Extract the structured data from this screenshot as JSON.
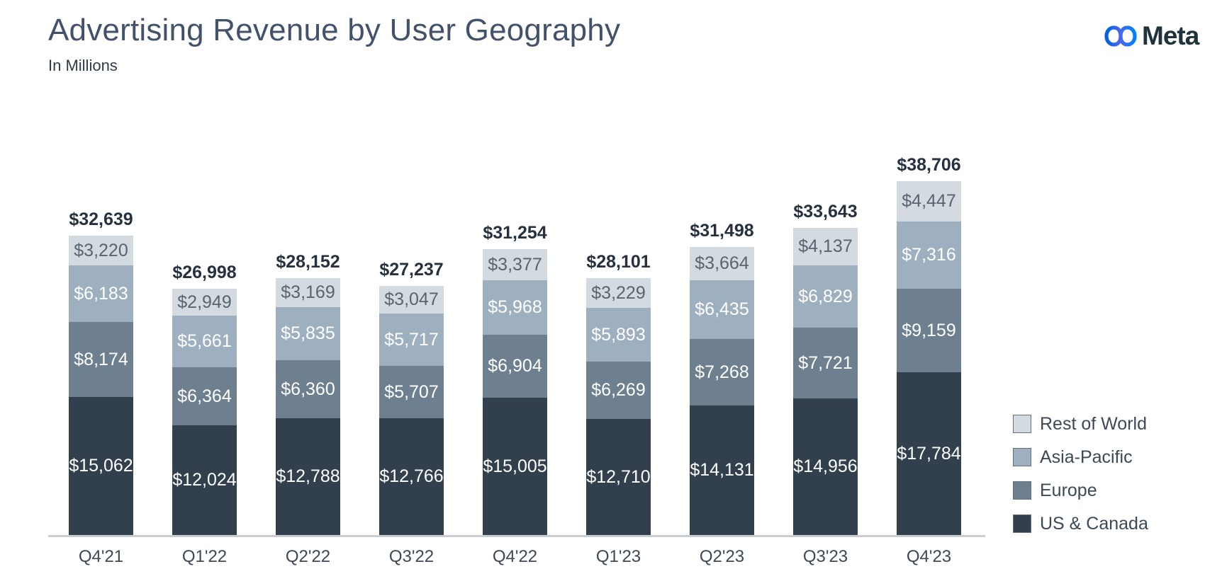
{
  "header": {
    "title": "Advertising Revenue by User Geography",
    "subtitle": "In Millions",
    "brand": {
      "name": "Meta",
      "icon": "meta-infinity-icon",
      "wordmark_color": "#20323c",
      "gradient_start": "#0064e0",
      "gradient_end": "#0082fb"
    }
  },
  "chart_data": {
    "type": "bar",
    "stacked": true,
    "title": "Advertising Revenue by User Geography",
    "subtitle": "In Millions",
    "unit": "USD millions",
    "value_prefix": "$",
    "grid": false,
    "legend_position": "right-bottom",
    "ylim": [
      0,
      40000
    ],
    "categories": [
      "Q4'21",
      "Q1'22",
      "Q2'22",
      "Q3'22",
      "Q4'22",
      "Q1'23",
      "Q2'23",
      "Q3'23",
      "Q4'23"
    ],
    "totals": [
      32639,
      26998,
      28152,
      27237,
      31254,
      28101,
      31498,
      33643,
      38706
    ],
    "series": [
      {
        "name": "Rest of World",
        "key": "rest-of-world",
        "color": "#d3dae0",
        "label_text_color": "#5a646f",
        "values": [
          3220,
          2949,
          3169,
          3047,
          3377,
          3229,
          3664,
          4137,
          4447
        ]
      },
      {
        "name": "Asia-Pacific",
        "key": "asia-pacific",
        "color": "#9eb0bf",
        "label_text_color": "#ffffff",
        "values": [
          6183,
          5661,
          5835,
          5717,
          5968,
          5893,
          6435,
          6829,
          7316
        ]
      },
      {
        "name": "Europe",
        "key": "europe",
        "color": "#6e8090",
        "label_text_color": "#ffffff",
        "values": [
          8174,
          6364,
          6360,
          5707,
          6904,
          6269,
          7268,
          7721,
          9159
        ]
      },
      {
        "name": "US & Canada",
        "key": "us-canada",
        "color": "#32404e",
        "label_text_color": "#ffffff",
        "values": [
          15062,
          12024,
          12788,
          12766,
          15005,
          12710,
          14131,
          14956,
          17784
        ]
      }
    ],
    "axis": {
      "baseline_color": "#c9cdd1",
      "tick_label_color": "#3d4956"
    }
  }
}
